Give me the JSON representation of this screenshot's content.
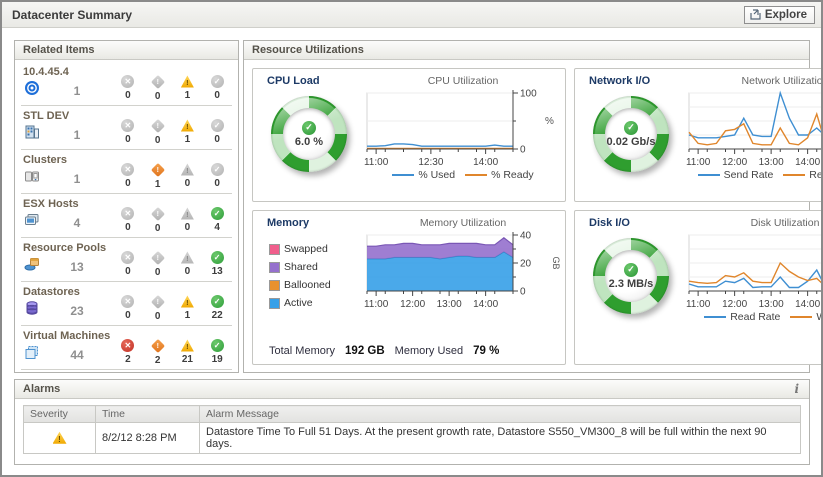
{
  "window": {
    "title": "Datacenter Summary",
    "explore_label": "Explore"
  },
  "related_items": {
    "title": "Related Items",
    "rows": [
      {
        "label": "10.4.45.4",
        "icon": "vcenter-icon",
        "count": "1",
        "fatal": 0,
        "critical": 0,
        "warning": 1,
        "normal": 0
      },
      {
        "label": "STL DEV",
        "icon": "datacenter-icon",
        "count": "1",
        "fatal": 0,
        "critical": 0,
        "warning": 1,
        "normal": 0
      },
      {
        "label": "Clusters",
        "icon": "cluster-icon",
        "count": "1",
        "fatal": 0,
        "critical": 1,
        "warning": 0,
        "normal": 0
      },
      {
        "label": "ESX Hosts",
        "icon": "esx-host-icon",
        "count": "4",
        "fatal": 0,
        "critical": 0,
        "warning": 0,
        "normal": 4
      },
      {
        "label": "Resource Pools",
        "icon": "resource-pool-icon",
        "count": "13",
        "fatal": 0,
        "critical": 0,
        "warning": 0,
        "normal": 13
      },
      {
        "label": "Datastores",
        "icon": "datastore-icon",
        "count": "23",
        "fatal": 0,
        "critical": 0,
        "warning": 1,
        "normal": 22
      },
      {
        "label": "Virtual Machines",
        "icon": "virtual-machine-icon",
        "count": "44",
        "fatal": 2,
        "critical": 2,
        "warning": 21,
        "normal": 19
      }
    ]
  },
  "resource_utilizations": {
    "title": "Resource Utilizations",
    "cpu": {
      "title": "CPU Load",
      "gauge_value": "6.0 %",
      "chart_title": "CPU Utilization"
    },
    "network": {
      "title": "Network I/O",
      "gauge_value": "0.02 Gb/s",
      "chart_title": "Network Utilization"
    },
    "memory": {
      "title": "Memory",
      "chart_title": "Memory Utilization",
      "footer": {
        "total_label": "Total Memory",
        "total_value": "192 GB",
        "used_label": "Memory Used",
        "used_value": "79 %"
      }
    },
    "disk": {
      "title": "Disk I/O",
      "gauge_value": "2.3 MB/s",
      "chart_title": "Disk Utilization"
    }
  },
  "alarms": {
    "title": "Alarms",
    "info_icon": "i",
    "columns": [
      "Severity",
      "Time",
      "Alarm Message"
    ],
    "rows": [
      {
        "severity": "warning",
        "time": "8/2/12 8:28 PM",
        "message": "Datastore Time To Full 51 Days. At the present growth rate, Datastore S550_VM300_8 will be full within the next 90 days."
      }
    ]
  },
  "chart_data": [
    {
      "type": "line",
      "title": "CPU Utilization",
      "ylabel": "%",
      "ylabel_rot": false,
      "ylim": [
        0,
        100
      ],
      "yticks": [
        0,
        100
      ],
      "y_minor": [
        50
      ],
      "x_tick_labels": [
        "11:00",
        "12:30",
        "14:00"
      ],
      "x_tick_idx": [
        1,
        7,
        13
      ],
      "x_range": "10:45 - 14:45 (15 min interval)",
      "series": [
        {
          "name": "% Used",
          "color": "#3f8fd2",
          "values": [
            5,
            5,
            6,
            9,
            9,
            8,
            5,
            5,
            5,
            5,
            5,
            5,
            5,
            5,
            7,
            5,
            5
          ]
        },
        {
          "name": "% Ready",
          "color": "#e0862c",
          "values": [
            1,
            1,
            1,
            1,
            1,
            1,
            1,
            1,
            1,
            1,
            1,
            1,
            1,
            1,
            1,
            1,
            1
          ]
        }
      ]
    },
    {
      "type": "line",
      "title": "Network Utilization",
      "ylabel": "Mb/s",
      "ylabel_rot": true,
      "ylim": [
        0,
        40
      ],
      "yticks": [
        0,
        20,
        40
      ],
      "y_minor": [
        10,
        30
      ],
      "x_tick_labels": [
        "11:00",
        "12:00",
        "13:00",
        "14:00"
      ],
      "x_tick_idx": [
        1,
        5,
        9,
        13
      ],
      "x_range": "10:45 - 14:45 (15 min interval)",
      "series": [
        {
          "name": "Send Rate",
          "color": "#3f8fd2",
          "values": [
            10,
            8,
            8,
            8,
            9,
            10,
            22,
            10,
            9,
            9,
            40,
            22,
            10,
            10,
            15,
            9,
            12
          ]
        },
        {
          "name": "Receive Rate",
          "color": "#e0862c",
          "values": [
            12,
            4,
            3,
            4,
            13,
            14,
            18,
            4,
            3,
            3,
            15,
            4,
            3,
            8,
            25,
            3,
            12
          ]
        }
      ]
    },
    {
      "type": "area",
      "title": "Memory Utilization",
      "ylabel": "GB",
      "ylabel_rot": true,
      "ylim": [
        0,
        40
      ],
      "yticks": [
        0,
        20,
        40
      ],
      "y_minor": [
        10,
        30
      ],
      "x_tick_labels": [
        "11:00",
        "12:00",
        "13:00",
        "14:00"
      ],
      "x_tick_idx": [
        1,
        5,
        9,
        13
      ],
      "x_range": "10:45 - 14:45 (15 min interval)",
      "legend_side": true,
      "series": [
        {
          "name": "Active",
          "color": "#36a0e8",
          "line": "#2b85c8",
          "values": [
            23,
            23,
            23,
            24,
            24,
            24,
            24,
            24,
            23,
            24,
            25,
            25,
            24,
            24,
            24,
            28,
            24
          ]
        },
        {
          "name": "Ballooned",
          "color": "#e8912d",
          "line": "#c97718",
          "values": [
            0,
            0,
            0,
            0,
            0,
            0,
            0,
            0,
            0,
            0,
            0,
            0,
            0,
            0,
            0,
            0,
            0
          ]
        },
        {
          "name": "Shared",
          "color": "#9570cd",
          "line": "#7a57b5",
          "values": [
            9,
            9,
            10,
            9,
            10,
            10,
            9,
            9,
            10,
            10,
            9,
            9,
            10,
            9,
            9,
            10,
            9
          ]
        },
        {
          "name": "Swapped",
          "color": "#f05e8c",
          "line": "#d13e6e",
          "values": [
            0,
            0,
            0,
            0,
            0,
            0,
            0,
            0,
            0,
            0,
            0,
            0,
            0,
            0,
            0,
            0,
            0
          ]
        }
      ]
    },
    {
      "type": "line",
      "title": "Disk Utilization",
      "ylabel": "MB/s",
      "ylabel_rot": true,
      "ylim": [
        0,
        8
      ],
      "yticks": [
        0,
        4,
        8
      ],
      "y_minor": [
        2,
        6
      ],
      "x_tick_labels": [
        "11:00",
        "12:00",
        "13:00",
        "14:00"
      ],
      "x_tick_idx": [
        1,
        5,
        9,
        13
      ],
      "x_range": "10:45 - 14:45 (15 min interval)",
      "series": [
        {
          "name": "Read Rate",
          "color": "#3f8fd2",
          "values": [
            1,
            0.6,
            0.6,
            0.6,
            1.4,
            1.2,
            1.8,
            0.5,
            0.6,
            0.6,
            2,
            0.5,
            0.5,
            1.4,
            3,
            0.4,
            1.3
          ]
        },
        {
          "name": "Write Rate",
          "color": "#e0862c",
          "values": [
            1.4,
            1.2,
            1.1,
            1.2,
            2.2,
            2,
            2.6,
            1.4,
            1.2,
            1.2,
            4,
            2.8,
            2,
            1.5,
            1.8,
            0.6,
            1.4
          ]
        }
      ]
    }
  ],
  "colors": {
    "chart_blue": "#3f8fd2",
    "chart_orange": "#e0862c",
    "gauge_green": "#2f9e2f",
    "status_red": "#c23025",
    "status_orange": "#e0731c",
    "status_yellow": "#f0a800",
    "status_green": "#2f9e3a"
  }
}
